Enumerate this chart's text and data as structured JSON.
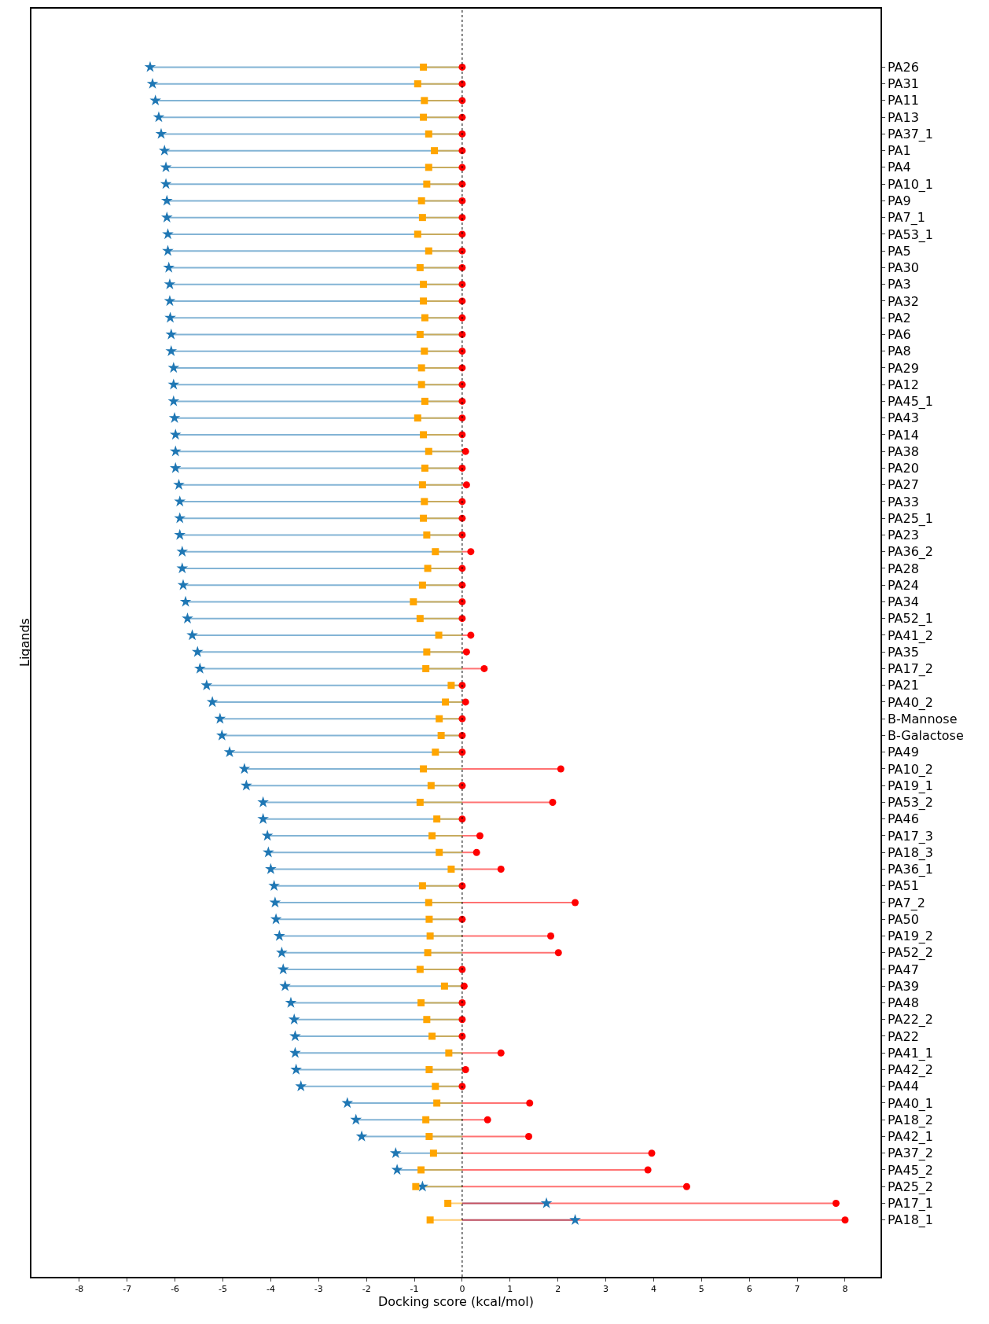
{
  "chart_data": {
    "type": "lollipop",
    "orientation": "horizontal",
    "xlabel": "Docking score (kcal/mol)",
    "ylabel": "Ligands",
    "categories": [
      "PA26",
      "PA31",
      "PA11",
      "PA13",
      "PA37_1",
      "PA1",
      "PA4",
      "PA10_1",
      "PA9",
      "PA7_1",
      "PA53_1",
      "PA5",
      "PA30",
      "PA3",
      "PA32",
      "PA2",
      "PA6",
      "PA8",
      "PA29",
      "PA12",
      "PA45_1",
      "PA43",
      "PA14",
      "PA38",
      "PA20",
      "PA27",
      "PA33",
      "PA25_1",
      "PA23",
      "PA36_2",
      "PA28",
      "PA24",
      "PA34",
      "PA52_1",
      "PA41_2",
      "PA35",
      "PA17_2",
      "PA21",
      "PA40_2",
      "B-Mannose",
      "B-Galactose",
      "PA49",
      "PA10_2",
      "PA19_1",
      "PA53_2",
      "PA46",
      "PA17_3",
      "PA18_3",
      "PA36_1",
      "PA51",
      "PA7_2",
      "PA50",
      "PA19_2",
      "PA52_2",
      "PA47",
      "PA39",
      "PA48",
      "PA22_2",
      "PA22",
      "PA41_1",
      "PA42_2",
      "PA44",
      "PA40_1",
      "PA18_2",
      "PA42_1",
      "PA37_2",
      "PA45_2",
      "PA25_2",
      "PA17_1",
      "PA18_1"
    ],
    "series": [
      {
        "color": "#1f77b4",
        "marker": "star",
        "values": [
          -6.52,
          -6.47,
          -6.41,
          -6.34,
          -6.29,
          -6.22,
          -6.19,
          -6.19,
          -6.17,
          -6.17,
          -6.15,
          -6.15,
          -6.13,
          -6.11,
          -6.11,
          -6.1,
          -6.08,
          -6.08,
          -6.03,
          -6.03,
          -6.03,
          -6.01,
          -5.99,
          -5.99,
          -5.99,
          -5.92,
          -5.9,
          -5.9,
          -5.9,
          -5.85,
          -5.85,
          -5.83,
          -5.78,
          -5.74,
          -5.64,
          -5.53,
          -5.48,
          -5.34,
          -5.22,
          -5.06,
          -5.02,
          -4.86,
          -4.55,
          -4.51,
          -4.16,
          -4.16,
          -4.07,
          -4.05,
          -4.0,
          -3.93,
          -3.91,
          -3.89,
          -3.82,
          -3.77,
          -3.74,
          -3.7,
          -3.58,
          -3.51,
          -3.49,
          -3.49,
          -3.47,
          -3.37,
          -2.4,
          -2.22,
          -2.1,
          -1.39,
          -1.36,
          -0.83,
          1.76,
          2.36
        ]
      },
      {
        "color": "#ffa500",
        "marker": "square",
        "values": [
          -0.81,
          -0.93,
          -0.79,
          -0.81,
          -0.7,
          -0.58,
          -0.7,
          -0.74,
          -0.85,
          -0.83,
          -0.93,
          -0.7,
          -0.88,
          -0.81,
          -0.81,
          -0.78,
          -0.88,
          -0.79,
          -0.85,
          -0.85,
          -0.78,
          -0.93,
          -0.81,
          -0.7,
          -0.78,
          -0.83,
          -0.79,
          -0.81,
          -0.74,
          -0.56,
          -0.72,
          -0.83,
          -1.02,
          -0.88,
          -0.49,
          -0.74,
          -0.76,
          -0.23,
          -0.35,
          -0.48,
          -0.44,
          -0.56,
          -0.81,
          -0.65,
          -0.88,
          -0.53,
          -0.63,
          -0.48,
          -0.23,
          -0.83,
          -0.7,
          -0.69,
          -0.67,
          -0.72,
          -0.88,
          -0.37,
          -0.86,
          -0.74,
          -0.63,
          -0.28,
          -0.69,
          -0.56,
          -0.53,
          -0.76,
          -0.69,
          -0.6,
          -0.86,
          -0.97,
          -0.3,
          -0.67
        ]
      },
      {
        "color": "#ff0000",
        "marker": "circle",
        "values": [
          0,
          0,
          0,
          0,
          0,
          0,
          0,
          0,
          0,
          0,
          0,
          0,
          0,
          0,
          0,
          0,
          0,
          0,
          0,
          0,
          0,
          0,
          0,
          0.07,
          0,
          0.09,
          0,
          0,
          0,
          0.18,
          0,
          0,
          0,
          0,
          0.18,
          0.09,
          0.46,
          0,
          0.07,
          0,
          0,
          0,
          2.06,
          0,
          1.89,
          0,
          0.37,
          0.3,
          0.81,
          0,
          2.36,
          0,
          1.85,
          2.01,
          0,
          0.04,
          0,
          0,
          0,
          0.81,
          0.07,
          0,
          1.41,
          0.53,
          1.39,
          3.96,
          3.88,
          4.69,
          7.81,
          8.0
        ]
      }
    ],
    "xlim": [
      -9.0,
      8.74
    ],
    "xticks": [
      -8,
      -7,
      -6,
      -5,
      -4,
      -3,
      -2,
      -1,
      0,
      1,
      2,
      3,
      4,
      5,
      6,
      7,
      8
    ],
    "ref_lines": [
      {
        "axis": "x",
        "value": 0,
        "color": "#000000",
        "line_style": "dotted"
      }
    ]
  }
}
